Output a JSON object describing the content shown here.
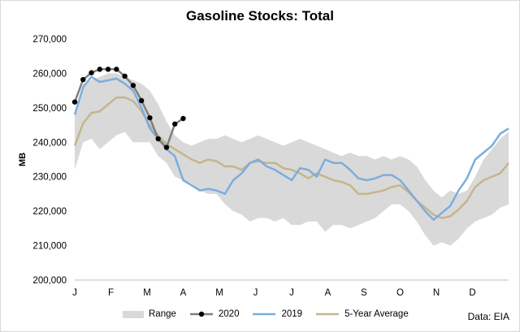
{
  "chart_data": {
    "type": "line",
    "title": "Gasoline Stocks: Total",
    "ylabel": "MB",
    "xlabel": "",
    "ylim": [
      200000,
      270000
    ],
    "y_ticks": [
      "200,000",
      "210,000",
      "220,000",
      "230,000",
      "240,000",
      "250,000",
      "260,000",
      "270,000"
    ],
    "x_ticks": [
      "J",
      "F",
      "M",
      "A",
      "M",
      "J",
      "J",
      "A",
      "S",
      "O",
      "N",
      "D"
    ],
    "x_domain": [
      1,
      53
    ],
    "grid": false,
    "legend_position": "bottom",
    "source": "Data: EIA",
    "legend": [
      "Range",
      "2020",
      "2019",
      "5-Year Average"
    ],
    "range": {
      "name": "Range",
      "color": "#d9d9d9",
      "weeks": [
        1,
        2,
        3,
        4,
        5,
        6,
        7,
        8,
        9,
        10,
        11,
        12,
        13,
        14,
        15,
        16,
        17,
        18,
        19,
        20,
        21,
        22,
        23,
        24,
        25,
        26,
        27,
        28,
        29,
        30,
        31,
        32,
        33,
        34,
        35,
        36,
        37,
        38,
        39,
        40,
        41,
        42,
        43,
        44,
        45,
        46,
        47,
        48,
        49,
        50,
        51,
        52,
        53
      ],
      "upper": [
        249000,
        257000,
        258000,
        259000,
        260000,
        260000,
        259000,
        258000,
        257000,
        255000,
        251000,
        246000,
        242000,
        240000,
        239000,
        240000,
        241000,
        241000,
        242000,
        241000,
        240000,
        241000,
        242000,
        241000,
        240000,
        239000,
        240000,
        241000,
        240000,
        239000,
        238000,
        237000,
        236000,
        237000,
        236000,
        236000,
        235000,
        236000,
        235000,
        236000,
        235000,
        233000,
        229000,
        226000,
        224000,
        226000,
        225000,
        226000,
        230000,
        235000,
        238000,
        241000,
        243000
      ],
      "lower": [
        232000,
        240000,
        241000,
        238000,
        240000,
        242000,
        243000,
        240000,
        240000,
        240000,
        236000,
        234000,
        230000,
        229000,
        228000,
        226000,
        225000,
        225000,
        222000,
        220000,
        219000,
        217000,
        218000,
        218000,
        217000,
        218000,
        216000,
        216000,
        217000,
        217000,
        214000,
        216000,
        216000,
        215000,
        216000,
        217000,
        218000,
        220000,
        222000,
        222000,
        220000,
        217000,
        213000,
        210000,
        211000,
        210000,
        212000,
        215000,
        217000,
        218000,
        219000,
        221000,
        222000
      ]
    },
    "series": [
      {
        "name": "2020",
        "color": "#000000",
        "line_color": "#7f7f7f",
        "weeks": [
          1,
          2,
          3,
          4,
          5,
          6,
          7,
          8,
          9,
          10,
          11,
          12,
          13,
          14
        ],
        "values": [
          251700,
          258200,
          260200,
          261200,
          261200,
          261200,
          259200,
          256500,
          252100,
          247100,
          241000,
          238500,
          245300,
          246900
        ]
      },
      {
        "name": "2019",
        "color": "#7cadde",
        "weeks": [
          1,
          2,
          3,
          4,
          5,
          6,
          7,
          8,
          9,
          10,
          11,
          12,
          13,
          14,
          15,
          16,
          17,
          18,
          19,
          20,
          21,
          22,
          23,
          24,
          25,
          26,
          27,
          28,
          29,
          30,
          31,
          32,
          33,
          34,
          35,
          36,
          37,
          38,
          39,
          40,
          41,
          42,
          43,
          44,
          45,
          46,
          47,
          48,
          49,
          50,
          51,
          52,
          53
        ],
        "values": [
          248000,
          256000,
          259000,
          257500,
          258000,
          258500,
          257000,
          255000,
          250000,
          244000,
          241000,
          238000,
          236000,
          229000,
          227500,
          226000,
          226500,
          226000,
          225000,
          229000,
          231000,
          234000,
          235000,
          233000,
          232000,
          230500,
          229000,
          232500,
          232000,
          230000,
          235000,
          234000,
          234000,
          232000,
          229500,
          229000,
          229500,
          230500,
          230500,
          229000,
          226000,
          223000,
          220000,
          217500,
          219500,
          221500,
          226000,
          229500,
          235000,
          237000,
          239000,
          242500,
          244000
        ]
      },
      {
        "name": "5-Year Average",
        "color": "#c4b68b",
        "weeks": [
          1,
          2,
          3,
          4,
          5,
          6,
          7,
          8,
          9,
          10,
          11,
          12,
          13,
          14,
          15,
          16,
          17,
          18,
          19,
          20,
          21,
          22,
          23,
          24,
          25,
          26,
          27,
          28,
          29,
          30,
          31,
          32,
          33,
          34,
          35,
          36,
          37,
          38,
          39,
          40,
          41,
          42,
          43,
          44,
          45,
          46,
          47,
          48,
          49,
          50,
          51,
          52,
          53
        ],
        "values": [
          239000,
          245500,
          248500,
          249000,
          251000,
          253000,
          253000,
          252000,
          249000,
          245000,
          242000,
          239500,
          238000,
          236500,
          235000,
          234000,
          235000,
          234500,
          233000,
          233000,
          232000,
          234000,
          234500,
          234000,
          234000,
          232500,
          232000,
          231000,
          229500,
          231000,
          230000,
          229000,
          228500,
          227500,
          225000,
          225000,
          225500,
          226000,
          227000,
          227500,
          225500,
          223000,
          221000,
          219000,
          218000,
          218500,
          220500,
          223000,
          227000,
          229000,
          230000,
          231000,
          234000
        ]
      }
    ]
  }
}
